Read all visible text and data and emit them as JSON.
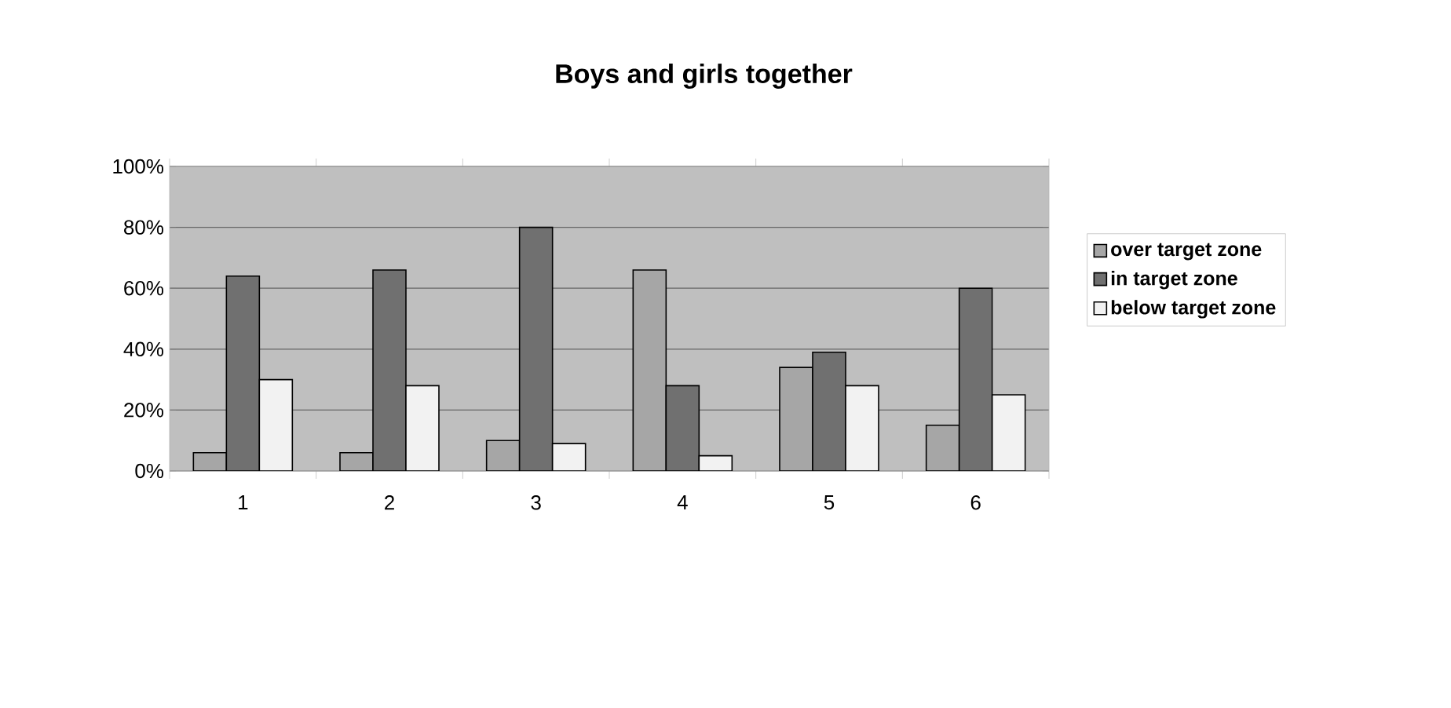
{
  "chart_data": {
    "type": "bar",
    "title": "Boys and girls together",
    "categories": [
      "1",
      "2",
      "3",
      "4",
      "5",
      "6"
    ],
    "series": [
      {
        "name": "over target zone",
        "color": "#a6a6a6",
        "values": [
          6,
          6,
          10,
          66,
          34,
          15
        ]
      },
      {
        "name": "in target zone",
        "color": "#707070",
        "values": [
          64,
          66,
          80,
          28,
          39,
          60
        ]
      },
      {
        "name": "below target zone",
        "color": "#f2f2f2",
        "values": [
          30,
          28,
          9,
          5,
          28,
          25
        ]
      }
    ],
    "ylim": [
      0,
      100
    ],
    "yticks": [
      {
        "value": 0,
        "label": "0%"
      },
      {
        "value": 20,
        "label": "20%"
      },
      {
        "value": 40,
        "label": "40%"
      },
      {
        "value": 60,
        "label": "60%"
      },
      {
        "value": 80,
        "label": "80%"
      },
      {
        "value": 100,
        "label": "100%"
      }
    ],
    "grid": "y",
    "legend": "right"
  }
}
